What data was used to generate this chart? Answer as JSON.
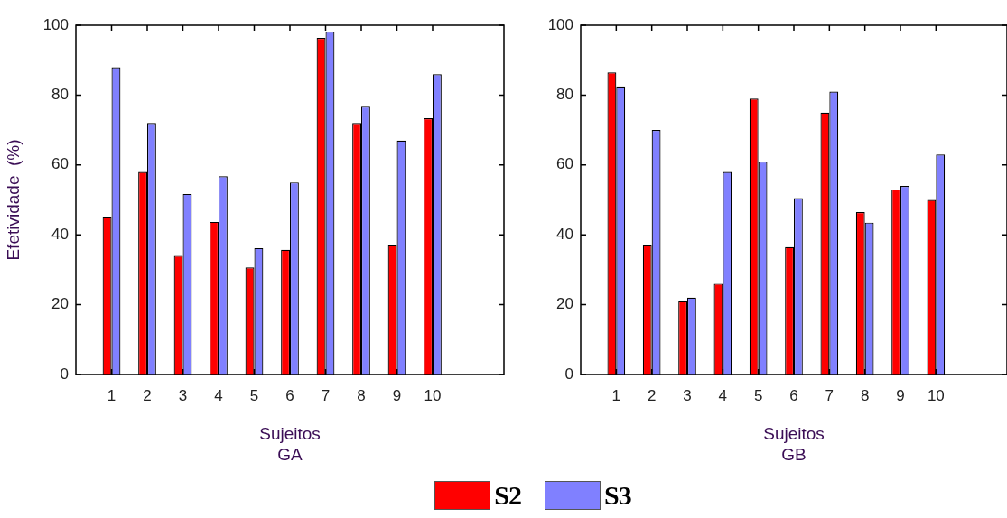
{
  "chart_data": [
    {
      "type": "bar",
      "xlabel": "Sujeitos\nGA",
      "ylabel": "Efetividade  (%)",
      "x": [
        1,
        2,
        3,
        4,
        5,
        6,
        7,
        8,
        9,
        10
      ],
      "xlim": [
        0,
        12
      ],
      "xticks": [
        1,
        2,
        3,
        4,
        5,
        6,
        7,
        8,
        9,
        10
      ],
      "ylim": [
        0,
        100
      ],
      "yticks": [
        0,
        20,
        40,
        60,
        80,
        100
      ],
      "grid": false,
      "legend": "bottom",
      "series": [
        {
          "name": "S2",
          "color": "#ff0000",
          "values": [
            45,
            58,
            34,
            43.7,
            30.7,
            35.7,
            96.4,
            72,
            37,
            73.4
          ]
        },
        {
          "name": "S3",
          "color": "#8080ff",
          "values": [
            88,
            72,
            51.7,
            56.8,
            36.2,
            55,
            98.2,
            76.7,
            67,
            86
          ]
        }
      ]
    },
    {
      "type": "bar",
      "xlabel": "Sujeitos\nGB",
      "x": [
        1,
        2,
        3,
        4,
        5,
        6,
        7,
        8,
        9,
        10
      ],
      "xlim": [
        0,
        12
      ],
      "xticks": [
        1,
        2,
        3,
        4,
        5,
        6,
        7,
        8,
        9,
        10
      ],
      "ylim": [
        0,
        100
      ],
      "yticks": [
        0,
        20,
        40,
        60,
        80,
        100
      ],
      "grid": false,
      "series": [
        {
          "color": "#ff0000",
          "values": [
            86.5,
            37,
            21,
            26,
            79,
            36.5,
            75,
            46.5,
            53,
            50
          ]
        },
        {
          "color": "#8080ff",
          "values": [
            82.5,
            70,
            22,
            58,
            61,
            50.5,
            81,
            43.5,
            54,
            63
          ]
        }
      ]
    }
  ]
}
